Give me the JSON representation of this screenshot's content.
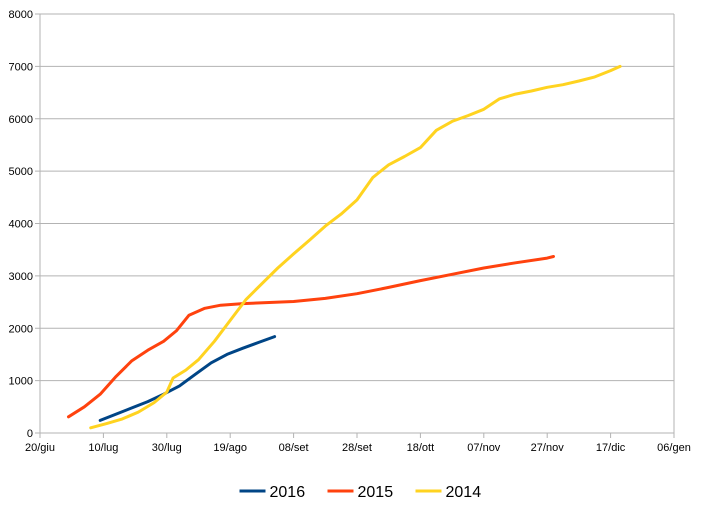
{
  "chart_data": {
    "type": "line",
    "title": "",
    "xlabel": "",
    "ylabel": "",
    "xlim": [
      "2016-06-20",
      "2017-01-06"
    ],
    "ylim": [
      0,
      8000
    ],
    "y_ticks": [
      0,
      1000,
      2000,
      3000,
      4000,
      5000,
      6000,
      7000,
      8000
    ],
    "x_tick_labels": [
      "20/giu",
      "10/lug",
      "30/lug",
      "19/ago",
      "08/set",
      "28/set",
      "18/ott",
      "07/nov",
      "27/nov",
      "17/dic",
      "06/gen"
    ],
    "x_tick_dates": [
      "2016-06-20",
      "2016-07-10",
      "2016-07-30",
      "2016-08-19",
      "2016-09-08",
      "2016-09-28",
      "2016-10-18",
      "2016-11-07",
      "2016-11-27",
      "2016-12-17",
      "2017-01-06"
    ],
    "grid": "horizontal",
    "legend_position": "bottom",
    "series": [
      {
        "name": "2016",
        "color": "#004586",
        "points": [
          [
            "2016-07-09",
            240
          ],
          [
            "2016-07-14",
            360
          ],
          [
            "2016-07-19",
            480
          ],
          [
            "2016-07-24",
            600
          ],
          [
            "2016-07-29",
            740
          ],
          [
            "2016-08-03",
            900
          ],
          [
            "2016-08-08",
            1120
          ],
          [
            "2016-08-13",
            1340
          ],
          [
            "2016-08-18",
            1500
          ],
          [
            "2016-08-23",
            1620
          ],
          [
            "2016-08-28",
            1730
          ],
          [
            "2016-09-02",
            1840
          ]
        ]
      },
      {
        "name": "2015",
        "color": "#ff420e",
        "points": [
          [
            "2016-06-29",
            310
          ],
          [
            "2016-07-04",
            500
          ],
          [
            "2016-07-09",
            740
          ],
          [
            "2016-07-14",
            1080
          ],
          [
            "2016-07-19",
            1380
          ],
          [
            "2016-07-24",
            1580
          ],
          [
            "2016-07-29",
            1750
          ],
          [
            "2016-08-02",
            1950
          ],
          [
            "2016-08-06",
            2250
          ],
          [
            "2016-08-11",
            2380
          ],
          [
            "2016-08-16",
            2440
          ],
          [
            "2016-08-23",
            2470
          ],
          [
            "2016-09-08",
            2510
          ],
          [
            "2016-09-18",
            2570
          ],
          [
            "2016-09-28",
            2660
          ],
          [
            "2016-10-08",
            2780
          ],
          [
            "2016-10-18",
            2910
          ],
          [
            "2016-10-28",
            3030
          ],
          [
            "2016-11-07",
            3150
          ],
          [
            "2016-11-17",
            3250
          ],
          [
            "2016-11-27",
            3340
          ],
          [
            "2016-11-29",
            3370
          ]
        ]
      },
      {
        "name": "2014",
        "color": "#ffd320",
        "points": [
          [
            "2016-07-06",
            100
          ],
          [
            "2016-07-11",
            180
          ],
          [
            "2016-07-16",
            270
          ],
          [
            "2016-07-21",
            400
          ],
          [
            "2016-07-26",
            580
          ],
          [
            "2016-07-30",
            780
          ],
          [
            "2016-08-01",
            1050
          ],
          [
            "2016-08-05",
            1200
          ],
          [
            "2016-08-09",
            1400
          ],
          [
            "2016-08-14",
            1750
          ],
          [
            "2016-08-19",
            2150
          ],
          [
            "2016-08-24",
            2550
          ],
          [
            "2016-08-29",
            2850
          ],
          [
            "2016-09-03",
            3150
          ],
          [
            "2016-09-08",
            3420
          ],
          [
            "2016-09-13",
            3680
          ],
          [
            "2016-09-18",
            3950
          ],
          [
            "2016-09-23",
            4180
          ],
          [
            "2016-09-28",
            4450
          ],
          [
            "2016-10-03",
            4880
          ],
          [
            "2016-10-08",
            5120
          ],
          [
            "2016-10-13",
            5280
          ],
          [
            "2016-10-18",
            5450
          ],
          [
            "2016-10-23",
            5780
          ],
          [
            "2016-10-28",
            5950
          ],
          [
            "2016-11-02",
            6060
          ],
          [
            "2016-11-07",
            6180
          ],
          [
            "2016-11-12",
            6380
          ],
          [
            "2016-11-17",
            6470
          ],
          [
            "2016-11-22",
            6530
          ],
          [
            "2016-11-27",
            6600
          ],
          [
            "2016-12-02",
            6650
          ],
          [
            "2016-12-07",
            6720
          ],
          [
            "2016-12-12",
            6800
          ],
          [
            "2016-12-17",
            6920
          ],
          [
            "2016-12-20",
            7000
          ]
        ]
      }
    ]
  }
}
